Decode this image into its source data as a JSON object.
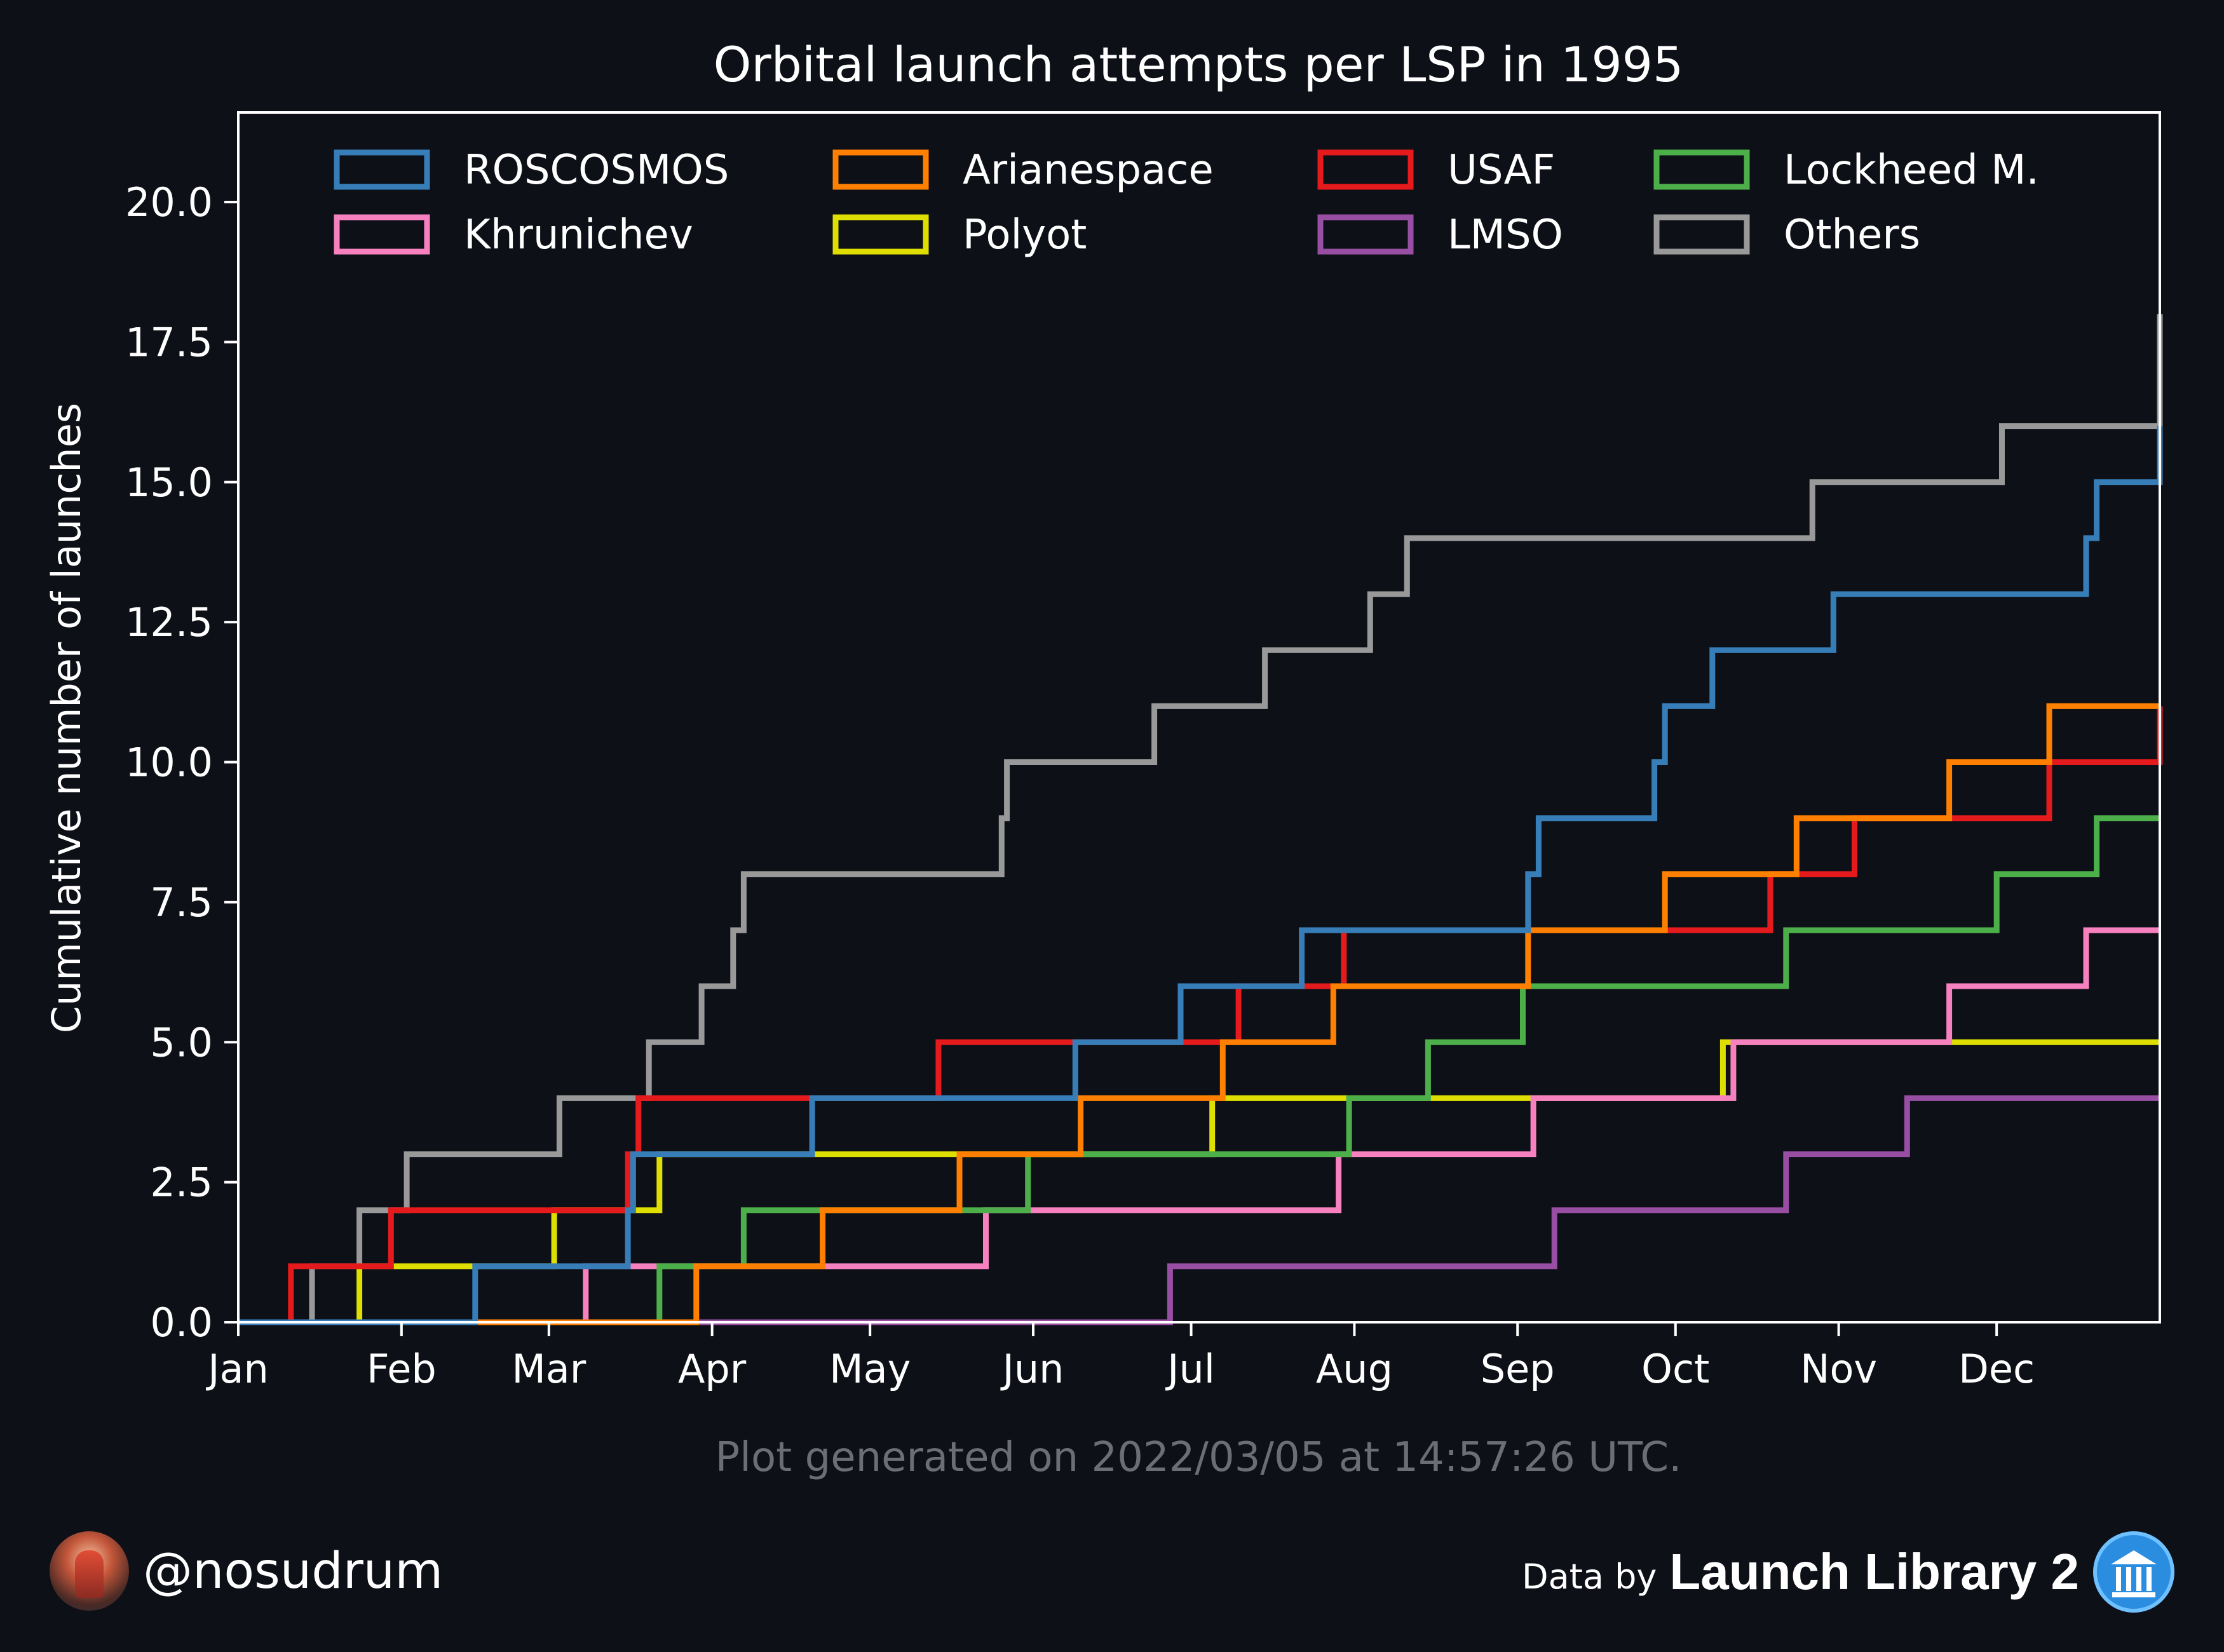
{
  "chart_data": {
    "type": "line",
    "step": true,
    "title": "Orbital launch attempts per LSP in 1995",
    "xlabel": "",
    "ylabel": "Cumulative number of launches",
    "xlim": [
      1,
      366
    ],
    "ylim": [
      0,
      21.6
    ],
    "x_ticks": [
      {
        "label": "Jan",
        "day": 1
      },
      {
        "label": "Feb",
        "day": 32
      },
      {
        "label": "Mar",
        "day": 60
      },
      {
        "label": "Apr",
        "day": 91
      },
      {
        "label": "May",
        "day": 121
      },
      {
        "label": "Jun",
        "day": 152
      },
      {
        "label": "Jul",
        "day": 182
      },
      {
        "label": "Aug",
        "day": 213
      },
      {
        "label": "Sep",
        "day": 244
      },
      {
        "label": "Oct",
        "day": 274
      },
      {
        "label": "Nov",
        "day": 305
      },
      {
        "label": "Dec",
        "day": 335
      }
    ],
    "y_ticks": [
      {
        "label": "0.0",
        "value": 0
      },
      {
        "label": "2.5",
        "value": 2.5
      },
      {
        "label": "5.0",
        "value": 5
      },
      {
        "label": "7.5",
        "value": 7.5
      },
      {
        "label": "10.0",
        "value": 10
      },
      {
        "label": "12.5",
        "value": 12.5
      },
      {
        "label": "15.0",
        "value": 15
      },
      {
        "label": "17.5",
        "value": 17.5
      },
      {
        "label": "20.0",
        "value": 20
      }
    ],
    "grid": false,
    "legend": "top, 4 columns",
    "note": "Plot generated on 2022/03/05 at 14:57:26 UTC.",
    "series": [
      {
        "name": "ROSCOSMOS",
        "color": "#377eb8",
        "launch_days": [
          46,
          75,
          76,
          110,
          160,
          180,
          203,
          246,
          248,
          270,
          272,
          281,
          304,
          352,
          354,
          366
        ]
      },
      {
        "name": "Arianespace",
        "color": "#ff7f00",
        "launch_days": [
          88,
          112,
          138,
          161,
          188,
          209,
          246,
          272,
          297,
          326,
          345
        ]
      },
      {
        "name": "USAF",
        "color": "#e41a1c",
        "launch_days": [
          11,
          30,
          75,
          77,
          134,
          191,
          211,
          292,
          308,
          345,
          366
        ]
      },
      {
        "name": "Lockheed M.",
        "color": "#4daf4a",
        "launch_days": [
          81,
          97,
          151,
          212,
          227,
          245,
          295,
          335,
          354
        ]
      },
      {
        "name": "Khrunichev",
        "color": "#f781bf",
        "launch_days": [
          67,
          143,
          210,
          247,
          285,
          326,
          352
        ]
      },
      {
        "name": "Polyot",
        "color": "#dede00",
        "launch_days": [
          24,
          61,
          81,
          186,
          283
        ]
      },
      {
        "name": "LMSO",
        "color": "#984ea3",
        "launch_days": [
          178,
          251,
          295,
          318
        ]
      },
      {
        "name": "Others",
        "color": "#999999",
        "launch_days": [
          15,
          24,
          33,
          62,
          79,
          89,
          95,
          97,
          146,
          147,
          175,
          196,
          216,
          223,
          300,
          336,
          366,
          367
        ]
      }
    ],
    "legend_order": [
      "ROSCOSMOS",
      "Arianespace",
      "USAF",
      "Lockheed M.",
      "Khrunichev",
      "Polyot",
      "LMSO",
      "Others"
    ]
  },
  "footer": {
    "handle": "@nosudrum",
    "data_by": "Data by",
    "source": "Launch Library 2",
    "avatar_icon": "astronaut-avatar-icon",
    "source_icon": "library-building-icon"
  }
}
